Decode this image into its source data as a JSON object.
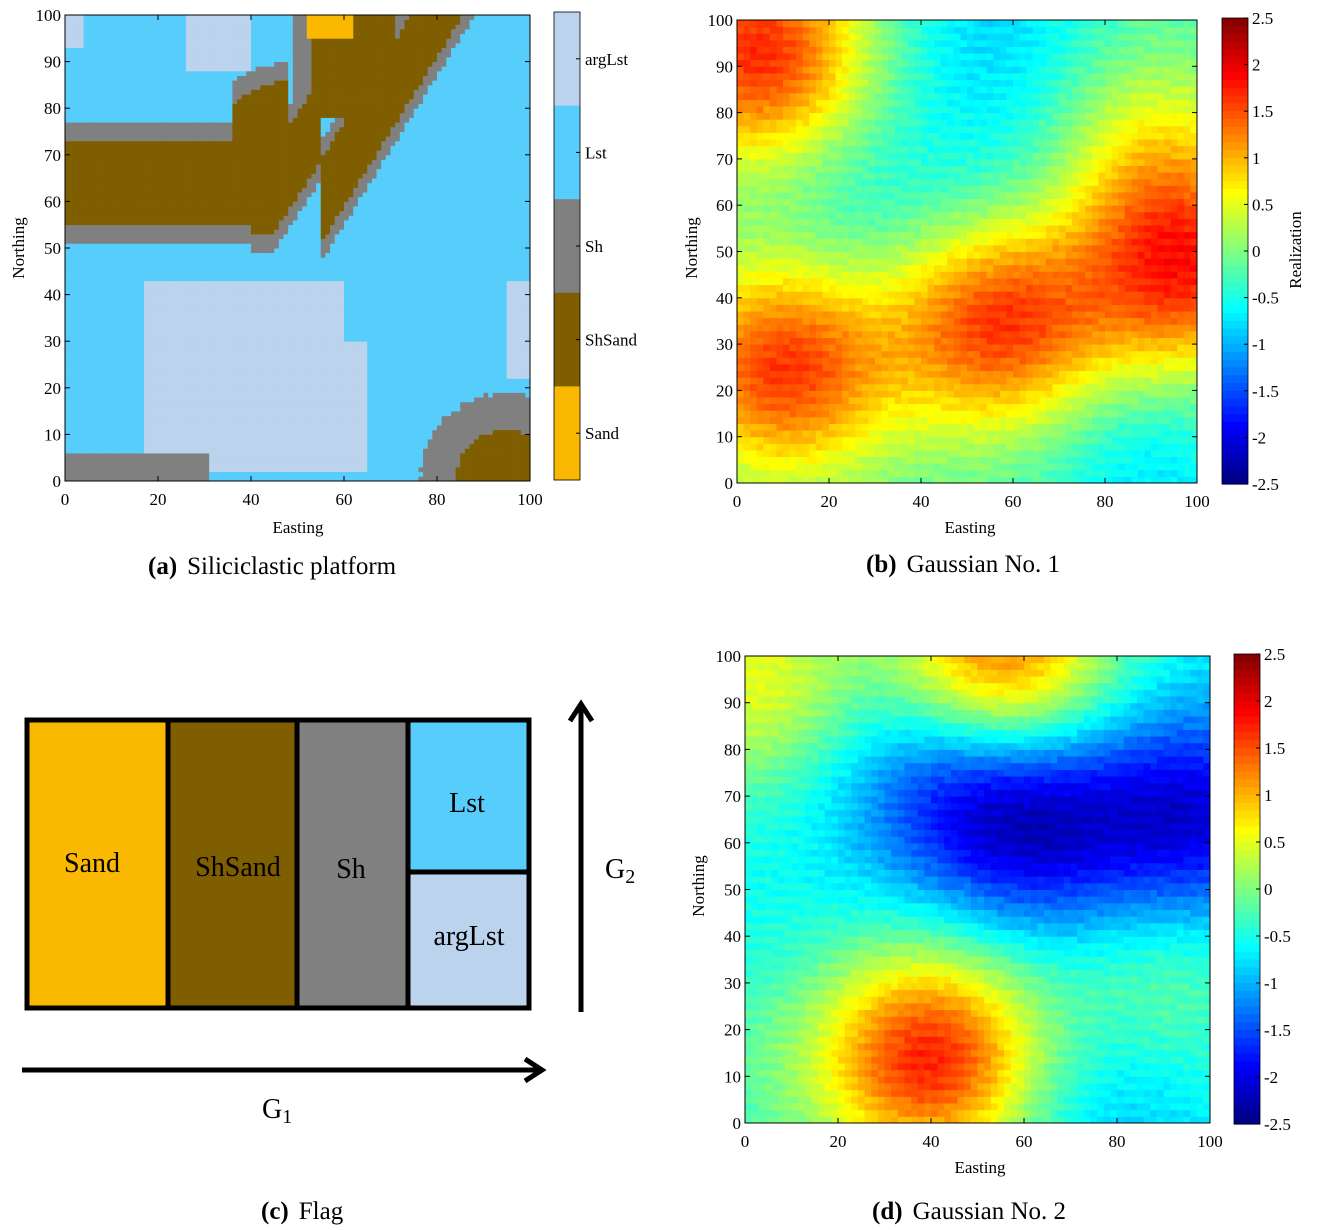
{
  "captions": {
    "a": {
      "letter": "(a)",
      "text": "Siliciclastic platform"
    },
    "b": {
      "letter": "(b)",
      "text": "Gaussian No. 1"
    },
    "c": {
      "letter": "(c)",
      "text": "Flag"
    },
    "d": {
      "letter": "(d)",
      "text": "Gaussian No. 2"
    }
  },
  "colors": {
    "Sand": "#fbb800",
    "ShSand": "#7f5e00",
    "Sh": "#808080",
    "Lst": "#56cdfb",
    "argLst": "#bbd3ec"
  },
  "chart_data": [
    {
      "id": "a",
      "type": "heatmap",
      "title": "",
      "xlabel": "Easting",
      "ylabel": "Northing",
      "xlim": [
        0,
        100
      ],
      "ylim": [
        0,
        100
      ],
      "xticks": [
        0,
        20,
        40,
        60,
        80,
        100
      ],
      "yticks": [
        0,
        10,
        20,
        30,
        40,
        50,
        60,
        70,
        80,
        90,
        100
      ],
      "categories": [
        "Sand",
        "ShSand",
        "Sh",
        "Lst",
        "argLst"
      ],
      "colorbar": {
        "labels": [
          "argLst",
          "Lst",
          "Sh",
          "ShSand",
          "Sand"
        ]
      },
      "grid": false
    },
    {
      "id": "b",
      "type": "heatmap",
      "title": "",
      "xlabel": "Easting",
      "ylabel": "Northing",
      "xlim": [
        0,
        100
      ],
      "ylim": [
        0,
        100
      ],
      "xticks": [
        0,
        20,
        40,
        60,
        80,
        100
      ],
      "yticks": [
        0,
        10,
        20,
        30,
        40,
        50,
        60,
        70,
        80,
        90,
        100
      ],
      "colorbar": {
        "label": "Realization",
        "range": [
          -2.5,
          2.5
        ],
        "ticks": [
          "2.5",
          "2",
          "1.5",
          "1",
          "0.5",
          "0",
          "-0.5",
          "-1",
          "-1.5",
          "-2",
          "-2.5"
        ]
      },
      "blobs": [
        {
          "x": 5,
          "y": 93,
          "value": 1.7
        },
        {
          "x": 10,
          "y": 25,
          "value": 1.6
        },
        {
          "x": 57,
          "y": 35,
          "value": 1.6
        },
        {
          "x": 98,
          "y": 45,
          "value": 1.5
        },
        {
          "x": 88,
          "y": 70,
          "value": 0.6
        },
        {
          "x": 55,
          "y": 100,
          "value": -0.8
        },
        {
          "x": 90,
          "y": 5,
          "value": -0.8
        },
        {
          "x": 28,
          "y": 60,
          "value": -0.6
        },
        {
          "x": 65,
          "y": 65,
          "value": -0.7
        }
      ],
      "base_value": -0.3,
      "grid": false
    },
    {
      "id": "d",
      "type": "heatmap",
      "title": "",
      "xlabel": "Easting",
      "ylabel": "Northing",
      "xlim": [
        0,
        100
      ],
      "ylim": [
        0,
        100
      ],
      "xticks": [
        0,
        20,
        40,
        60,
        80,
        100
      ],
      "yticks": [
        0,
        10,
        20,
        30,
        40,
        50,
        60,
        70,
        80,
        90,
        100
      ],
      "colorbar": {
        "label": "",
        "range": [
          -2.5,
          2.5
        ],
        "ticks": [
          "2.5",
          "2",
          "1.5",
          "1",
          "0.5",
          "0",
          "-0.5",
          "-1",
          "-1.5",
          "-2",
          "-2.5"
        ]
      },
      "blobs": [
        {
          "x": 40,
          "y": 14,
          "value": 1.7
        },
        {
          "x": 55,
          "y": 98,
          "value": 1.5
        },
        {
          "x": 62,
          "y": 65,
          "value": -2.0
        },
        {
          "x": 42,
          "y": 75,
          "value": -1.5
        },
        {
          "x": 97,
          "y": 65,
          "value": -2.0
        },
        {
          "x": 2,
          "y": 95,
          "value": 0.5
        },
        {
          "x": 2,
          "y": 10,
          "value": -0.3
        },
        {
          "x": 80,
          "y": 5,
          "value": -1.0
        },
        {
          "x": 90,
          "y": 30,
          "value": 0.0
        }
      ],
      "base_value": -0.6,
      "grid": false
    }
  ],
  "flag": {
    "cells": [
      "Sand",
      "ShSand",
      "Sh",
      "Lst",
      "argLst"
    ],
    "axis_x": "G1",
    "axis_y": "G2"
  }
}
